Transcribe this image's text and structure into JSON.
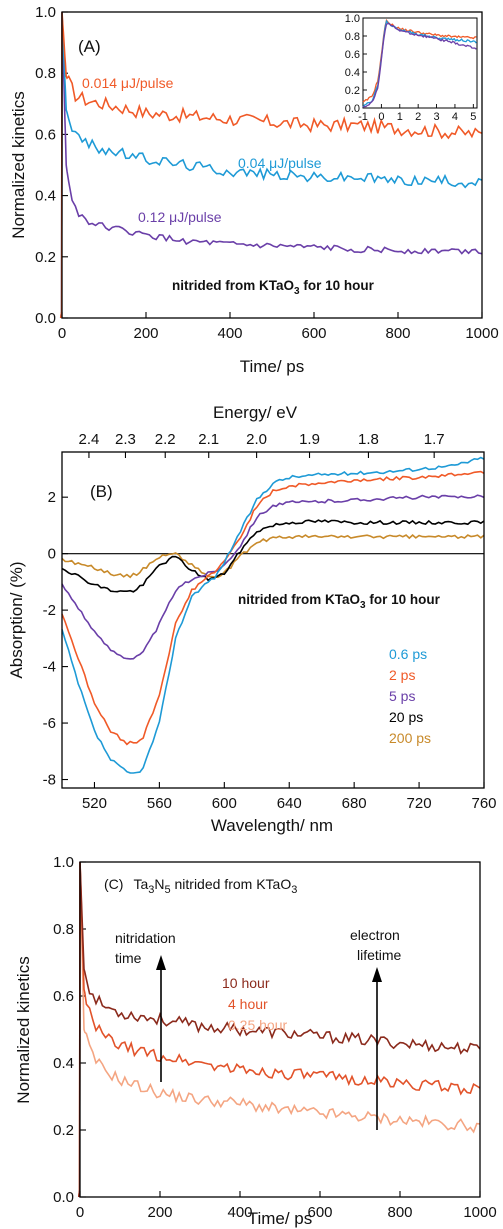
{
  "chart_data": [
    {
      "panel": "(A)",
      "type": "line",
      "xlabel": "Time/ ps",
      "ylabel": "Normalized kinetics",
      "xlim": [
        0,
        1000
      ],
      "ylim": [
        0,
        1.0
      ],
      "xticks": [
        0,
        200,
        400,
        600,
        800,
        1000
      ],
      "yticks": [
        0.0,
        0.2,
        0.4,
        0.6,
        0.8,
        1.0
      ],
      "annotation_prefix": "nitrided from KTaO",
      "annotation_sub": "3",
      "annotation_suffix": "  for 10 hour",
      "series": [
        {
          "name": "0.014 μJ/pulse",
          "color": "#f05a28",
          "x": [
            0,
            10,
            30,
            60,
            100,
            200,
            300,
            400,
            500,
            600,
            700,
            800,
            900,
            1000
          ],
          "y": [
            1.0,
            0.79,
            0.73,
            0.71,
            0.7,
            0.67,
            0.66,
            0.65,
            0.64,
            0.63,
            0.63,
            0.62,
            0.61,
            0.6
          ]
        },
        {
          "name": "0.04 μJ/pulse",
          "color": "#1e9ad6",
          "x": [
            0,
            10,
            30,
            60,
            100,
            200,
            300,
            400,
            500,
            600,
            700,
            800,
            900,
            1000
          ],
          "y": [
            1.0,
            0.68,
            0.6,
            0.57,
            0.55,
            0.52,
            0.5,
            0.48,
            0.47,
            0.46,
            0.46,
            0.45,
            0.45,
            0.44
          ]
        },
        {
          "name": "0.12 μJ/pulse",
          "color": "#6a3fa8",
          "x": [
            0,
            10,
            20,
            40,
            70,
            100,
            200,
            300,
            400,
            500,
            600,
            700,
            800,
            900,
            1000
          ],
          "y": [
            1.0,
            0.5,
            0.4,
            0.34,
            0.31,
            0.3,
            0.27,
            0.25,
            0.24,
            0.235,
            0.23,
            0.225,
            0.22,
            0.22,
            0.22
          ]
        }
      ],
      "inset": {
        "xlim": [
          -1,
          5.2
        ],
        "ylim": [
          0,
          1.0
        ],
        "xticks": [
          -1,
          0,
          1,
          2,
          3,
          4,
          5
        ],
        "yticks": [
          0.0,
          0.2,
          0.4,
          0.6,
          0.8,
          1.0
        ],
        "x": [
          -1,
          -0.5,
          -0.2,
          0,
          0.15,
          0.3,
          0.5,
          1,
          2,
          3,
          4,
          5,
          5.2
        ],
        "series": [
          {
            "color": "#f05a28",
            "y": [
              0.06,
              0.13,
              0.3,
              0.58,
              0.86,
              0.98,
              0.93,
              0.88,
              0.84,
              0.81,
              0.79,
              0.78,
              0.78
            ]
          },
          {
            "color": "#1e9ad6",
            "y": [
              0.02,
              0.08,
              0.25,
              0.55,
              0.84,
              0.97,
              0.92,
              0.87,
              0.82,
              0.78,
              0.76,
              0.74,
              0.73
            ]
          },
          {
            "color": "#6a3fa8",
            "y": [
              0.01,
              0.06,
              0.22,
              0.52,
              0.82,
              0.96,
              0.92,
              0.86,
              0.81,
              0.77,
              0.72,
              0.67,
              0.66
            ]
          }
        ]
      }
    },
    {
      "panel": "(B)",
      "type": "line",
      "xlabel": "Wavelength/ nm",
      "ylabel": "Absorption/ (%)",
      "top_axis_label": "Energy/ eV",
      "xlim": [
        500,
        760
      ],
      "ylim": [
        -8.3,
        3.6
      ],
      "xticks": [
        520,
        560,
        600,
        640,
        680,
        720,
        760
      ],
      "yticks": [
        -8,
        -6,
        -4,
        -2,
        0,
        2
      ],
      "top_ticks": [
        {
          "label": "2.4",
          "wl": 516.6
        },
        {
          "label": "2.3",
          "wl": 539.1
        },
        {
          "label": "2.2",
          "wl": 563.6
        },
        {
          "label": "2.1",
          "wl": 590.4
        },
        {
          "label": "2.0",
          "wl": 619.9
        },
        {
          "label": "1.9",
          "wl": 652.5
        },
        {
          "label": "1.8",
          "wl": 688.8
        },
        {
          "label": "1.7",
          "wl": 729.3
        }
      ],
      "annotation_prefix": "nitrided from KTaO",
      "annotation_sub": "3",
      "annotation_suffix": "  for 10 hour",
      "x": [
        500,
        510,
        520,
        530,
        540,
        545,
        550,
        560,
        570,
        580,
        590,
        595,
        600,
        610,
        620,
        630,
        640,
        660,
        680,
        700,
        720,
        740,
        760
      ],
      "series": [
        {
          "name": "0.6 ps",
          "color": "#1e9ad6",
          "y": [
            -2.7,
            -4.6,
            -6.3,
            -7.3,
            -7.75,
            -7.8,
            -7.6,
            -6.0,
            -3.0,
            -1.5,
            -1.0,
            -0.8,
            -0.3,
            0.8,
            1.9,
            2.5,
            2.7,
            2.8,
            2.85,
            2.9,
            3.0,
            3.1,
            3.4
          ]
        },
        {
          "name": "2 ps",
          "color": "#f05a28",
          "y": [
            -2.1,
            -3.7,
            -5.3,
            -6.3,
            -6.7,
            -6.7,
            -6.5,
            -5.0,
            -2.5,
            -1.3,
            -0.8,
            -0.6,
            -0.3,
            0.6,
            1.7,
            2.2,
            2.4,
            2.5,
            2.6,
            2.65,
            2.7,
            2.8,
            2.9
          ]
        },
        {
          "name": "5 ps",
          "color": "#6a3fa8",
          "y": [
            -1.1,
            -1.9,
            -2.8,
            -3.4,
            -3.7,
            -3.7,
            -3.5,
            -2.5,
            -1.3,
            -0.9,
            -0.7,
            -0.6,
            -0.4,
            0.3,
            1.3,
            1.7,
            1.8,
            1.85,
            1.9,
            1.95,
            2.0,
            2.0,
            2.05
          ]
        },
        {
          "name": "20 ps",
          "color": "#000000",
          "y": [
            -0.5,
            -0.8,
            -1.1,
            -1.3,
            -1.35,
            -1.3,
            -1.1,
            -0.4,
            -0.1,
            -0.6,
            -0.9,
            -0.85,
            -0.7,
            0.1,
            0.8,
            1.0,
            1.1,
            1.15,
            1.1,
            1.1,
            1.1,
            1.1,
            1.1
          ]
        },
        {
          "name": "200 ps",
          "color": "#c88a2a",
          "y": [
            -0.2,
            -0.35,
            -0.5,
            -0.7,
            -0.8,
            -0.75,
            -0.55,
            -0.1,
            0.0,
            -0.4,
            -0.8,
            -0.85,
            -0.7,
            -0.1,
            0.4,
            0.55,
            0.6,
            0.6,
            0.6,
            0.6,
            0.6,
            0.6,
            0.6
          ]
        }
      ]
    },
    {
      "panel": "(C)",
      "type": "line",
      "xlabel": "Time/ ps",
      "ylabel": "Normalized kinetics",
      "xlim": [
        0,
        1000
      ],
      "ylim": [
        0,
        1.0
      ],
      "xticks": [
        0,
        200,
        400,
        600,
        800,
        1000
      ],
      "yticks": [
        0.0,
        0.2,
        0.4,
        0.6,
        0.8,
        1.0
      ],
      "title_prefix": "Ta",
      "title_sub1": "3",
      "title_mid": "N",
      "title_sub2": "5",
      "title_rest": " nitrided from KTaO",
      "title_sub3": "3",
      "arrow_left_label_line1": "nitridation",
      "arrow_left_label_line2": "time",
      "arrow_right_label_line1": "electron",
      "arrow_right_label_line2": "lifetime",
      "series": [
        {
          "name": "10 hour",
          "color": "#8b2a1c",
          "x": [
            0,
            10,
            30,
            60,
            100,
            200,
            300,
            400,
            500,
            600,
            700,
            800,
            900,
            1000
          ],
          "y": [
            1.0,
            0.68,
            0.6,
            0.57,
            0.55,
            0.53,
            0.51,
            0.5,
            0.49,
            0.48,
            0.47,
            0.46,
            0.45,
            0.44
          ]
        },
        {
          "name": "4 hour",
          "color": "#e2532a",
          "x": [
            0,
            10,
            30,
            60,
            100,
            200,
            300,
            400,
            500,
            600,
            700,
            800,
            900,
            1000
          ],
          "y": [
            1.0,
            0.62,
            0.52,
            0.48,
            0.45,
            0.42,
            0.4,
            0.38,
            0.37,
            0.36,
            0.35,
            0.34,
            0.33,
            0.32
          ]
        },
        {
          "name": "0.25 hour",
          "color": "#f4a582",
          "x": [
            0,
            10,
            30,
            60,
            100,
            200,
            300,
            400,
            500,
            600,
            700,
            800,
            900,
            1000
          ],
          "y": [
            1.0,
            0.5,
            0.42,
            0.38,
            0.35,
            0.31,
            0.29,
            0.28,
            0.26,
            0.25,
            0.24,
            0.23,
            0.22,
            0.21
          ]
        }
      ]
    }
  ]
}
